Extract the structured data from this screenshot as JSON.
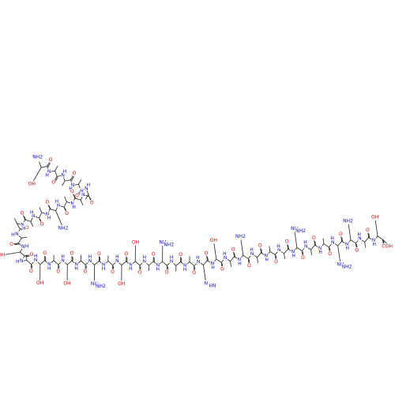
{
  "molecule": {
    "atoms": {
      "O": "O",
      "N": "N",
      "H": "H"
    },
    "n_terminus": "NH2",
    "c_terminus": "OH",
    "side_chain_labels": [
      "OH",
      "NH2",
      "OH",
      "OH",
      "OH",
      "NH",
      "NH2",
      "OH",
      "OH",
      "NH",
      "NH2",
      "N",
      "HN",
      "OH",
      "NH2",
      "NH",
      "NH2",
      "NH",
      "NH2",
      "NH2",
      "OH"
    ]
  }
}
